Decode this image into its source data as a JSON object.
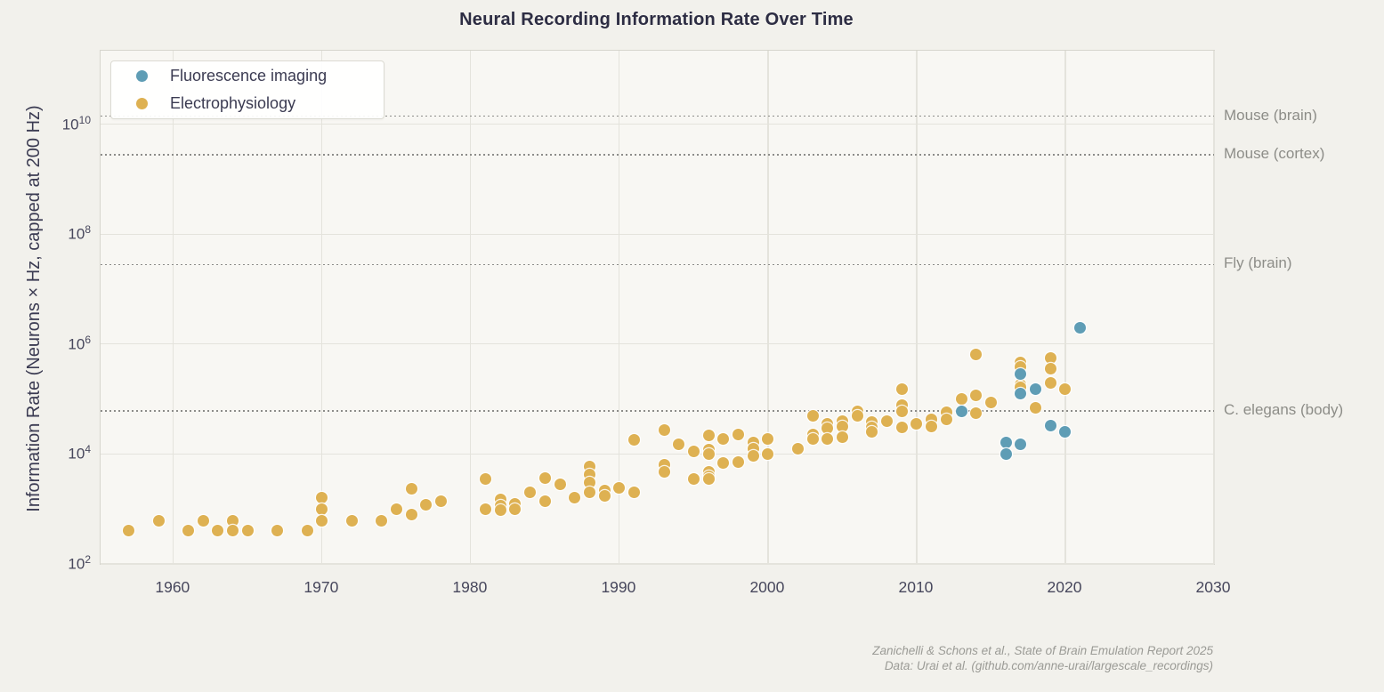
{
  "title": "Neural Recording Information Rate Over Time",
  "legend": {
    "items": [
      {
        "label": "Fluorescence imaging",
        "color": "#5f9db5"
      },
      {
        "label": "Electrophysiology",
        "color": "#deb152"
      }
    ]
  },
  "footer": {
    "line1": "Zanichelli & Schons et al., State of Brain Emulation Report 2025",
    "line2": "Data: Urai et al. (github.com/anne-urai/largescale_recordings)"
  },
  "chart_data": {
    "type": "scatter",
    "title": "Neural Recording Information Rate Over Time",
    "x_axis": {
      "label": "",
      "range": [
        1955.1,
        2030
      ],
      "ticks": [
        1960,
        1970,
        1980,
        1990,
        2000,
        2010,
        2020,
        2030
      ]
    },
    "y_axis": {
      "label": "Information Rate (Neurons × Hz, capped at 200 Hz)",
      "scale": "log",
      "range_log10": [
        2,
        11.337
      ],
      "ticks_exp": [
        2,
        4,
        6,
        8,
        10
      ],
      "grid": true
    },
    "reference_lines": [
      {
        "label": "Mouse (brain)",
        "value": 14000000000
      },
      {
        "label": "Mouse (cortex)",
        "value": 2800000000
      },
      {
        "label": "Fly (brain)",
        "value": 28000000
      },
      {
        "label": "C. elegans (body)",
        "value": 60400
      }
    ],
    "series": [
      {
        "name": "Fluorescence imaging",
        "color": "#5f9db5",
        "points": [
          [
            2013,
            60000
          ],
          [
            2016,
            16000
          ],
          [
            2016,
            10000
          ],
          [
            2017,
            280000
          ],
          [
            2017,
            125000
          ],
          [
            2017,
            15000
          ],
          [
            2018,
            150000
          ],
          [
            2019,
            33000
          ],
          [
            2020,
            25000
          ],
          [
            2021,
            2000000
          ]
        ]
      },
      {
        "name": "Electrophysiology",
        "color": "#deb152",
        "points": [
          [
            1957,
            400
          ],
          [
            1959,
            600
          ],
          [
            1961,
            400
          ],
          [
            1962,
            600
          ],
          [
            1963,
            400
          ],
          [
            1964,
            600
          ],
          [
            1964,
            400
          ],
          [
            1965,
            400
          ],
          [
            1965,
            400
          ],
          [
            1967,
            400
          ],
          [
            1969,
            400
          ],
          [
            1970,
            1600
          ],
          [
            1970,
            1000
          ],
          [
            1970,
            600
          ],
          [
            1972,
            600
          ],
          [
            1974,
            600
          ],
          [
            1975,
            1000
          ],
          [
            1976,
            2300
          ],
          [
            1976,
            800
          ],
          [
            1977,
            1200
          ],
          [
            1978,
            1400
          ],
          [
            1981,
            3500
          ],
          [
            1981,
            1000
          ],
          [
            1982,
            1500
          ],
          [
            1982,
            1150
          ],
          [
            1982,
            950
          ],
          [
            1983,
            1250
          ],
          [
            1983,
            1000
          ],
          [
            1984,
            2000
          ],
          [
            1985,
            3700
          ],
          [
            1985,
            1400
          ],
          [
            1986,
            2800
          ],
          [
            1987,
            1600
          ],
          [
            1988,
            6000
          ],
          [
            1988,
            4200
          ],
          [
            1988,
            3000
          ],
          [
            1988,
            2000
          ],
          [
            1989,
            2200
          ],
          [
            1989,
            1700
          ],
          [
            1990,
            2400
          ],
          [
            1991,
            18000
          ],
          [
            1991,
            2000
          ],
          [
            1993,
            27000
          ],
          [
            1993,
            6300
          ],
          [
            1993,
            4700
          ],
          [
            1994,
            15000
          ],
          [
            1995,
            11000
          ],
          [
            1995,
            3500
          ],
          [
            1996,
            22000
          ],
          [
            1996,
            12000
          ],
          [
            1996,
            10000
          ],
          [
            1996,
            4800
          ],
          [
            1996,
            3900
          ],
          [
            1996,
            3500
          ],
          [
            1997,
            19000
          ],
          [
            1997,
            6800
          ],
          [
            1998,
            23000
          ],
          [
            1998,
            7000
          ],
          [
            1999,
            16000
          ],
          [
            1999,
            12500
          ],
          [
            1999,
            9400
          ],
          [
            2000,
            19000
          ],
          [
            2000,
            10000
          ],
          [
            2002,
            12500
          ],
          [
            2003,
            49000
          ],
          [
            2003,
            23000
          ],
          [
            2003,
            18500
          ],
          [
            2004,
            36000
          ],
          [
            2004,
            29000
          ],
          [
            2004,
            19000
          ],
          [
            2005,
            39000
          ],
          [
            2005,
            32000
          ],
          [
            2005,
            20000
          ],
          [
            2006,
            59000
          ],
          [
            2006,
            49000
          ],
          [
            2007,
            38000
          ],
          [
            2007,
            30000
          ],
          [
            2007,
            25000
          ],
          [
            2008,
            40000
          ],
          [
            2009,
            150000
          ],
          [
            2009,
            76000
          ],
          [
            2009,
            60000
          ],
          [
            2009,
            31000
          ],
          [
            2010,
            36000
          ],
          [
            2011,
            42000
          ],
          [
            2011,
            32000
          ],
          [
            2012,
            58000
          ],
          [
            2012,
            43000
          ],
          [
            2013,
            100000
          ],
          [
            2014,
            650000
          ],
          [
            2014,
            115000
          ],
          [
            2014,
            55000
          ],
          [
            2015,
            85000
          ],
          [
            2017,
            470000
          ],
          [
            2017,
            390000
          ],
          [
            2017,
            185000
          ],
          [
            2017,
            165000
          ],
          [
            2018,
            70000
          ],
          [
            2019,
            550000
          ],
          [
            2019,
            360000
          ],
          [
            2019,
            200000
          ],
          [
            2020,
            150000
          ]
        ]
      }
    ]
  }
}
